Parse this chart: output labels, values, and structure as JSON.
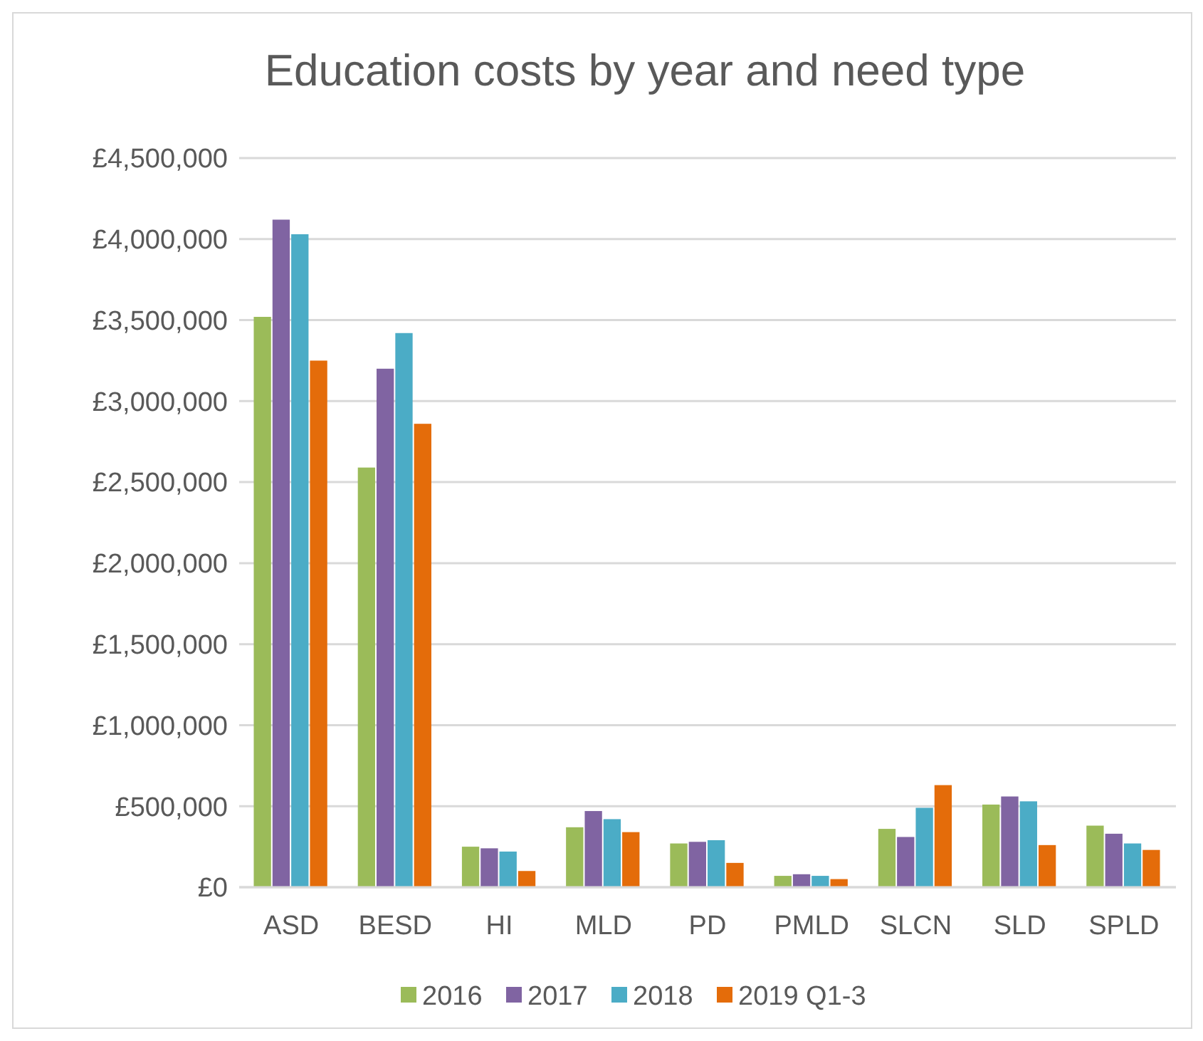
{
  "chart_data": {
    "type": "bar",
    "title": "Education costs by year and need type",
    "categories": [
      "ASD",
      "BESD",
      "HI",
      "MLD",
      "PD",
      "PMLD",
      "SLCN",
      "SLD",
      "SPLD"
    ],
    "series": [
      {
        "name": "2016",
        "color": "#9bbb59",
        "values": [
          3520000,
          2590000,
          250000,
          370000,
          270000,
          70000,
          360000,
          510000,
          380000
        ]
      },
      {
        "name": "2017",
        "color": "#8064a2",
        "values": [
          4120000,
          3200000,
          240000,
          470000,
          280000,
          80000,
          310000,
          560000,
          330000
        ]
      },
      {
        "name": "2018",
        "color": "#4bacc6",
        "values": [
          4030000,
          3420000,
          220000,
          420000,
          290000,
          70000,
          490000,
          530000,
          270000
        ]
      },
      {
        "name": "2019 Q1-3",
        "color": "#e46c0a",
        "values": [
          3250000,
          2860000,
          100000,
          340000,
          150000,
          50000,
          630000,
          260000,
          230000
        ]
      }
    ],
    "ylim": [
      0,
      4500000
    ],
    "yticks": [
      {
        "value": 0,
        "label": "£0"
      },
      {
        "value": 500000,
        "label": "£500,000"
      },
      {
        "value": 1000000,
        "label": "£1,000,000"
      },
      {
        "value": 1500000,
        "label": "£1,500,000"
      },
      {
        "value": 2000000,
        "label": "£2,000,000"
      },
      {
        "value": 2500000,
        "label": "£2,500,000"
      },
      {
        "value": 3000000,
        "label": "£3,000,000"
      },
      {
        "value": 3500000,
        "label": "£3,500,000"
      },
      {
        "value": 4000000,
        "label": "£4,000,000"
      },
      {
        "value": 4500000,
        "label": "£4,500,000"
      }
    ],
    "grid": "y",
    "legend": "bottom"
  }
}
